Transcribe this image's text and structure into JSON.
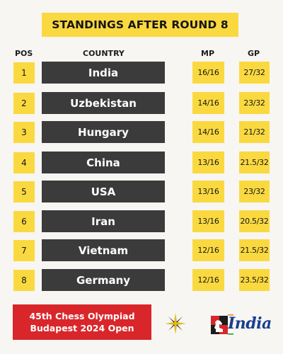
{
  "title": "STANDINGS AFTER ROUND 8",
  "headers": {
    "pos": "POS",
    "country": "COUNTRY",
    "mp": "MP",
    "gp": "GP"
  },
  "rows": [
    {
      "pos": "1",
      "country": "India",
      "mp": "16/16",
      "gp": "27/32"
    },
    {
      "pos": "2",
      "country": "Uzbekistan",
      "mp": "14/16",
      "gp": "23/32"
    },
    {
      "pos": "3",
      "country": "Hungary",
      "mp": "14/16",
      "gp": "21/32"
    },
    {
      "pos": "4",
      "country": "China",
      "mp": "13/16",
      "gp": "21.5/32"
    },
    {
      "pos": "5",
      "country": "USA",
      "mp": "13/16",
      "gp": "23/32"
    },
    {
      "pos": "6",
      "country": "Iran",
      "mp": "13/16",
      "gp": "20.5/32"
    },
    {
      "pos": "7",
      "country": "Vietnam",
      "mp": "12/16",
      "gp": "21.5/32"
    },
    {
      "pos": "8",
      "country": "Germany",
      "mp": "12/16",
      "gp": "23.5/32"
    }
  ],
  "event": {
    "line1": "45th Chess Olympiad",
    "line2": "Budapest 2024 Open"
  },
  "logos": {
    "emblem_icon": "olympiad-star-emblem-icon",
    "brand_logo": "chessbase-india-logo",
    "brand_text": "India"
  },
  "colors": {
    "accent": "#fad940",
    "cell": "#3b3b3b",
    "event_bg": "#d9262a",
    "brand": "#1b3f8f"
  }
}
